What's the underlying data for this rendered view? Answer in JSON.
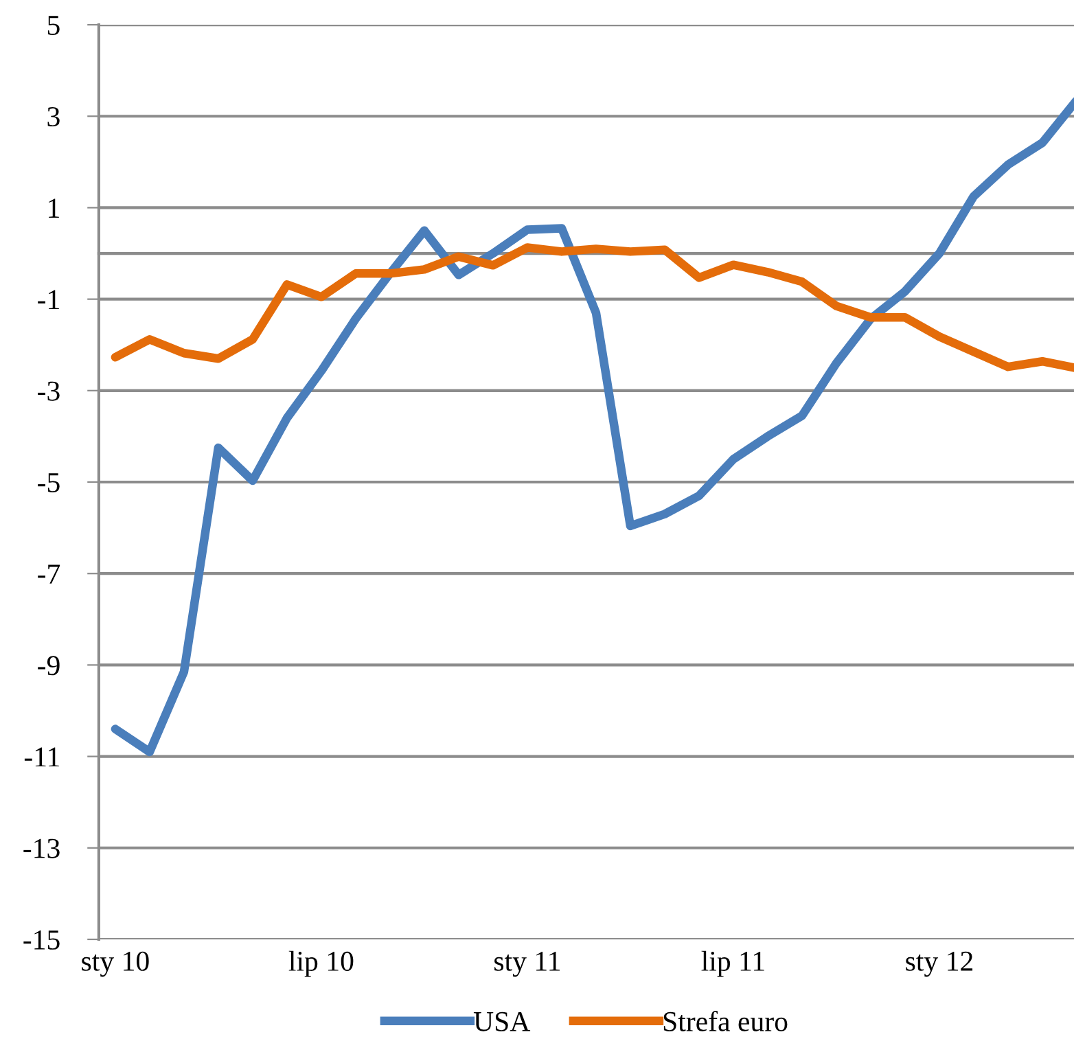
{
  "chart_data": {
    "type": "line",
    "categories": [
      "sty 10",
      null,
      null,
      null,
      null,
      null,
      "lip 10",
      null,
      null,
      null,
      null,
      null,
      "sty 11",
      null,
      null,
      null,
      null,
      null,
      "lip 11",
      null,
      null,
      null,
      null,
      null,
      "sty 12",
      null,
      null,
      null,
      null
    ],
    "series": [
      {
        "name": "USA",
        "color": "#4a7ebb",
        "values": [
          -10.4,
          -10.9,
          -9.15,
          -4.25,
          -4.97,
          -3.6,
          -2.57,
          -1.43,
          -0.44,
          0.5,
          -0.47,
          0.0,
          0.52,
          0.55,
          -1.3,
          -5.96,
          -5.7,
          -5.3,
          -4.5,
          -4.0,
          -3.55,
          -2.4,
          -1.43,
          -0.83,
          0.0,
          1.25,
          1.94,
          2.42,
          3.35
        ]
      },
      {
        "name": "Strefa euro",
        "color": "#e46c0a",
        "values": [
          -2.27,
          -1.88,
          -2.18,
          -2.3,
          -1.88,
          -0.68,
          -0.95,
          -0.44,
          -0.44,
          -0.35,
          -0.07,
          -0.26,
          0.13,
          0.04,
          0.1,
          0.04,
          0.08,
          -0.53,
          -0.25,
          -0.41,
          -0.62,
          -1.15,
          -1.4,
          -1.4,
          -1.82,
          -2.15,
          -2.48,
          -2.36,
          -2.51
        ]
      }
    ],
    "ylim": [
      -15,
      5
    ],
    "yticks": [
      -15,
      -13,
      -11,
      -9,
      -7,
      -5,
      -3,
      -1,
      1,
      3,
      5
    ],
    "grid": "y",
    "legend": "bottom",
    "marker": "none",
    "line_style": "solid"
  }
}
